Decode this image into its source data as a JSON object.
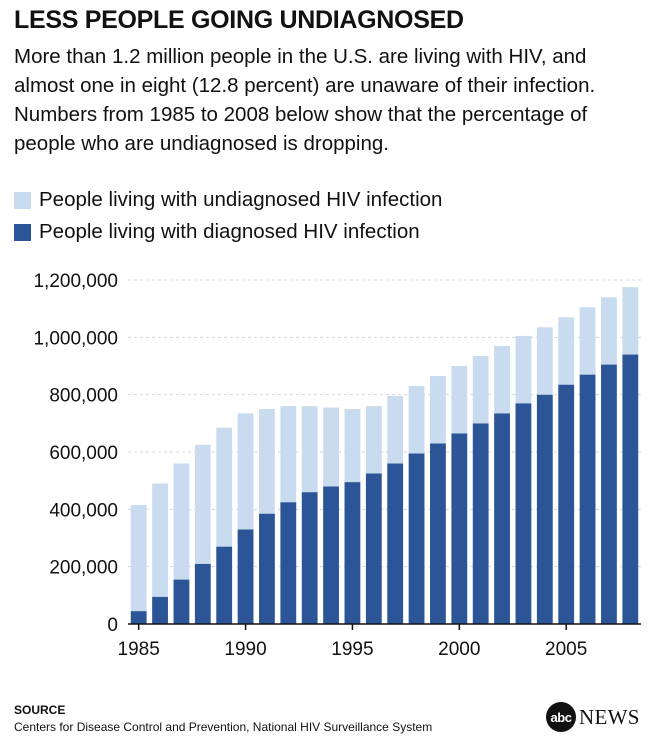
{
  "header": {
    "title": "LESS PEOPLE GOING UNDIAGNOSED",
    "subtitle": "More than 1.2 million people in the U.S. are living with HIV, and almost one in eight (12.8 percent) are unaware of their infection. Numbers from 1985 to 2008 below show that the percentage of people who are undiagnosed is dropping."
  },
  "legend": {
    "undiagnosed_label": "People living with undiagnosed HIV infection",
    "diagnosed_label": "People living with diagnosed HIV infection"
  },
  "colors": {
    "undiagnosed": "#c9dbef",
    "diagnosed": "#2b5596",
    "grid": "#d6d6d6"
  },
  "chart_data": {
    "type": "bar",
    "stacked": true,
    "x": [
      1985,
      1986,
      1987,
      1988,
      1989,
      1990,
      1991,
      1992,
      1993,
      1994,
      1995,
      1996,
      1997,
      1998,
      1999,
      2000,
      2001,
      2002,
      2003,
      2004,
      2005,
      2006,
      2007,
      2008
    ],
    "x_tick_labels": [
      "1985",
      "1990",
      "1995",
      "2000",
      "2005"
    ],
    "y_tick_labels": [
      "0",
      "200,000",
      "400,000",
      "600,000",
      "800,000",
      "1,000,000",
      "1,200,000"
    ],
    "series": [
      {
        "name": "People living with diagnosed HIV infection",
        "values": [
          45000,
          95000,
          155000,
          210000,
          270000,
          330000,
          385000,
          425000,
          460000,
          480000,
          495000,
          525000,
          560000,
          595000,
          630000,
          665000,
          700000,
          735000,
          770000,
          800000,
          835000,
          870000,
          905000,
          940000
        ]
      },
      {
        "name": "People living with undiagnosed HIV infection",
        "values": [
          370000,
          395000,
          405000,
          415000,
          415000,
          405000,
          365000,
          335000,
          300000,
          275000,
          255000,
          235000,
          235000,
          235000,
          235000,
          235000,
          235000,
          235000,
          235000,
          235000,
          235000,
          235000,
          235000,
          235000
        ]
      }
    ],
    "ylim": [
      0,
      1200000
    ],
    "grid": true,
    "legend_position": "top-left"
  },
  "source": {
    "heading": "SOURCE",
    "text": "Centers for Disease Control and Prevention, National HIV Surveillance System"
  },
  "logo": {
    "circle_text": "abc",
    "word": "NEWS"
  }
}
